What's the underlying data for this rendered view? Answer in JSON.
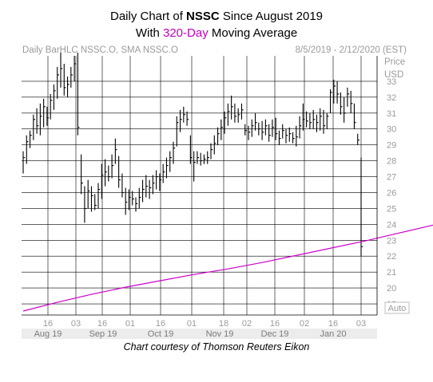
{
  "title": {
    "line1_prefix": "Daily Chart of ",
    "line1_ticker": "NSSC",
    "line1_suffix": " Since August 2019",
    "line2_prefix": "With ",
    "line2_ma": "320-Day",
    "line2_suffix": " Moving Average"
  },
  "header": {
    "left": "Daily BarHLC NSSC.O, SMA NSSC.O",
    "right": "8/5/2019 - 2/12/2020 (EST)"
  },
  "axis": {
    "price_label": "Price",
    "currency_label": "USD",
    "auto_label": "Auto"
  },
  "credit": "Chart courtesy of Thomson Reuters Eikon",
  "colors": {
    "bars": "#000000",
    "sma": "#cc00cc",
    "grid": "#000000",
    "axis_text": "#9a9a9a",
    "title_accent": "#c000c0"
  },
  "chart_data": {
    "type": "line",
    "x_day_ticks": [
      "16",
      "03",
      "16",
      "01",
      "16",
      "01",
      "18",
      "02",
      "16",
      "02",
      "16",
      "03"
    ],
    "x_month_labels": [
      "Aug 19",
      "Sep 19",
      "Oct 19",
      "Nov 19",
      "Dec 19",
      "Jan 20"
    ],
    "y_ticks": [
      19,
      20,
      21,
      22,
      23,
      24,
      25,
      26,
      27,
      28,
      29,
      30,
      31,
      32,
      33
    ],
    "ylim": [
      18.3,
      34.6
    ],
    "price_bars_hlc": [
      [
        28.6,
        27.2,
        28.2
      ],
      [
        29.6,
        27.8,
        29.2
      ],
      [
        29.9,
        28.8,
        29.6
      ],
      [
        30.9,
        29.3,
        30.6
      ],
      [
        31.3,
        29.7,
        30.2
      ],
      [
        31.6,
        29.6,
        30.8
      ],
      [
        31.9,
        30.1,
        31.4
      ],
      [
        31.4,
        30.2,
        30.7
      ],
      [
        32.2,
        30.6,
        31.8
      ],
      [
        32.8,
        31.2,
        32.4
      ],
      [
        33.9,
        31.9,
        33.4
      ],
      [
        34.8,
        32.6,
        33.8
      ],
      [
        34.1,
        32.1,
        32.6
      ],
      [
        33.3,
        32.0,
        32.8
      ],
      [
        33.9,
        32.6,
        33.4
      ],
      [
        34.6,
        33.0,
        34.1
      ],
      [
        34.8,
        29.6,
        30.1
      ],
      [
        28.4,
        25.9,
        26.6
      ],
      [
        26.4,
        24.1,
        25.0
      ],
      [
        26.8,
        25.0,
        26.1
      ],
      [
        26.4,
        24.8,
        25.8
      ],
      [
        25.9,
        24.9,
        25.2
      ],
      [
        26.6,
        25.0,
        26.2
      ],
      [
        27.8,
        25.6,
        27.1
      ],
      [
        28.1,
        26.4,
        27.3
      ],
      [
        27.7,
        26.7,
        27.0
      ],
      [
        28.4,
        26.9,
        27.7
      ],
      [
        29.4,
        27.8,
        28.7
      ],
      [
        28.3,
        26.3,
        26.8
      ],
      [
        27.2,
        25.7,
        26.0
      ],
      [
        26.3,
        24.6,
        25.4
      ],
      [
        26.2,
        24.9,
        25.7
      ],
      [
        26.1,
        25.2,
        25.6
      ],
      [
        25.7,
        24.8,
        25.3
      ],
      [
        26.3,
        25.0,
        25.7
      ],
      [
        26.8,
        25.4,
        26.2
      ],
      [
        27.1,
        25.7,
        26.4
      ],
      [
        26.8,
        25.6,
        26.3
      ],
      [
        27.1,
        25.9,
        26.6
      ],
      [
        27.4,
        26.2,
        27.0
      ],
      [
        27.2,
        26.1,
        26.8
      ],
      [
        27.8,
        26.6,
        27.3
      ],
      [
        28.2,
        26.9,
        27.7
      ],
      [
        28.6,
        27.3,
        28.2
      ],
      [
        29.2,
        27.8,
        28.8
      ],
      [
        30.8,
        28.9,
        30.4
      ],
      [
        31.2,
        29.8,
        30.6
      ],
      [
        31.4,
        30.4,
        30.9
      ],
      [
        31.1,
        30.2,
        30.6
      ],
      [
        29.6,
        27.8,
        28.2
      ],
      [
        28.6,
        26.7,
        27.9
      ],
      [
        28.6,
        27.8,
        28.2
      ],
      [
        28.5,
        27.7,
        28.0
      ],
      [
        28.4,
        27.8,
        28.1
      ],
      [
        28.6,
        27.8,
        28.2
      ],
      [
        29.1,
        28.1,
        28.7
      ],
      [
        29.6,
        28.4,
        29.1
      ],
      [
        30.1,
        29.0,
        29.7
      ],
      [
        30.6,
        29.3,
        30.1
      ],
      [
        31.1,
        29.7,
        30.7
      ],
      [
        31.6,
        30.2,
        31.1
      ],
      [
        32.1,
        30.6,
        31.4
      ],
      [
        31.6,
        30.4,
        30.8
      ],
      [
        31.3,
        30.4,
        30.9
      ],
      [
        31.6,
        30.6,
        31.2
      ],
      [
        30.3,
        29.6,
        29.9
      ],
      [
        30.2,
        29.3,
        29.8
      ],
      [
        30.6,
        29.5,
        30.2
      ],
      [
        31.0,
        29.9,
        30.4
      ],
      [
        30.4,
        29.6,
        30.0
      ],
      [
        30.5,
        29.3,
        29.8
      ],
      [
        30.6,
        29.6,
        30.2
      ],
      [
        30.3,
        29.2,
        29.6
      ],
      [
        30.6,
        29.5,
        30.1
      ],
      [
        30.7,
        29.3,
        29.7
      ],
      [
        29.9,
        29.0,
        29.4
      ],
      [
        30.3,
        29.4,
        29.9
      ],
      [
        30.0,
        29.1,
        29.6
      ],
      [
        30.1,
        29.2,
        29.7
      ],
      [
        29.8,
        29.1,
        29.4
      ],
      [
        30.2,
        28.9,
        29.5
      ],
      [
        30.8,
        29.4,
        30.2
      ],
      [
        31.6,
        29.9,
        30.6
      ],
      [
        31.1,
        30.1,
        30.5
      ],
      [
        31.0,
        30.0,
        30.4
      ],
      [
        31.2,
        30.0,
        30.6
      ],
      [
        30.9,
        29.8,
        30.4
      ],
      [
        31.3,
        29.9,
        30.8
      ],
      [
        31.2,
        29.7,
        30.2
      ],
      [
        31.0,
        30.0,
        30.8
      ],
      [
        32.5,
        31.0,
        32.3
      ],
      [
        33.1,
        31.6,
        32.7
      ],
      [
        33.0,
        31.6,
        32.2
      ],
      [
        32.3,
        30.9,
        31.4
      ],
      [
        32.0,
        30.4,
        31.0
      ],
      [
        32.6,
        31.4,
        32.2
      ],
      [
        32.4,
        31.0,
        31.6
      ],
      [
        31.6,
        30.0,
        30.4
      ],
      [
        29.7,
        29.0,
        29.3
      ],
      [
        28.2,
        22.0,
        22.6
      ]
    ],
    "series": [
      {
        "values": [
          [
            0,
            18.55
          ],
          [
            10,
            19.1
          ],
          [
            20,
            19.6
          ],
          [
            30,
            20.05
          ],
          [
            40,
            20.45
          ],
          [
            50,
            20.85
          ],
          [
            60,
            21.2
          ],
          [
            70,
            21.6
          ],
          [
            80,
            22.05
          ],
          [
            90,
            22.5
          ],
          [
            100,
            22.95
          ],
          [
            110,
            23.45
          ],
          [
            120,
            23.95
          ],
          [
            128,
            24.45
          ]
        ]
      }
    ]
  }
}
